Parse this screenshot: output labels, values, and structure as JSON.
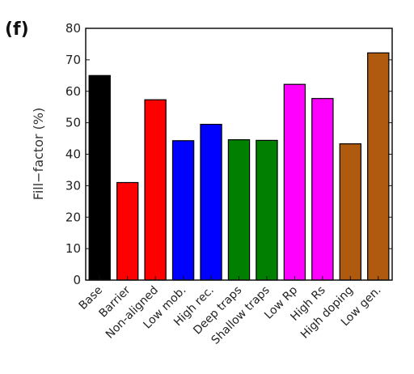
{
  "panel_label": "(f)",
  "chart_data": {
    "type": "bar",
    "categories": [
      "Base",
      "Barrier",
      "Non-aligned",
      "Low mob.",
      "High rec.",
      "Deep traps",
      "Shallow traps",
      "Low Rp",
      "High Rs",
      "High doping",
      "Low gen."
    ],
    "values": [
      65,
      31,
      57.3,
      44.3,
      49.5,
      44.6,
      44.4,
      62.2,
      57.7,
      43.3,
      72.2
    ],
    "bar_colors": [
      "#000000",
      "#ff0000",
      "#ff0000",
      "#0000ff",
      "#0000ff",
      "#007f00",
      "#007f00",
      "#ff00ff",
      "#ff00ff",
      "#b05a10",
      "#b05a10"
    ],
    "title": "",
    "xlabel": "",
    "ylabel": "Fill−factor (%)",
    "ylim": [
      0,
      80
    ],
    "yticks": [
      0,
      10,
      20,
      30,
      40,
      50,
      60,
      70,
      80
    ],
    "grid": false,
    "legend": "none"
  }
}
